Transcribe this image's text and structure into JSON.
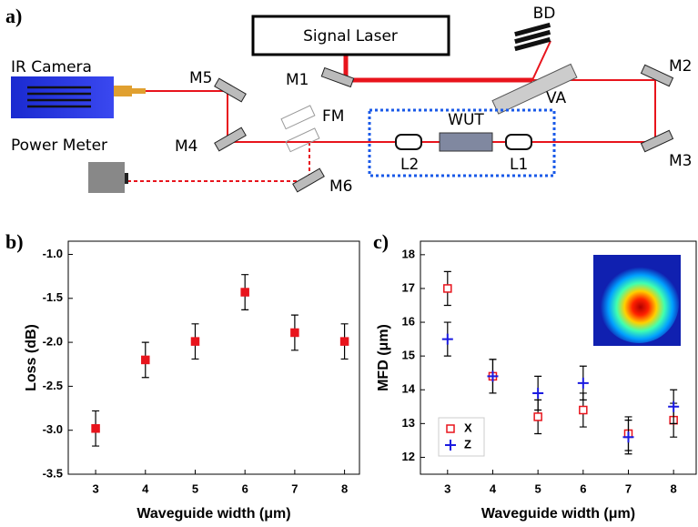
{
  "panels": [
    "a)",
    "b)",
    "c)"
  ],
  "diagram": {
    "signal_laser": "Signal Laser",
    "bd": "BD",
    "ir_camera": "IR Camera",
    "power_meter": "Power Meter",
    "m1": "M1",
    "m2": "M2",
    "m3": "M3",
    "m4": "M4",
    "m5": "M5",
    "m6": "M6",
    "va": "VA",
    "fm": "FM",
    "wut": "WUT",
    "l1": "L1",
    "l2": "L2"
  },
  "chart_data": [
    {
      "type": "scatter",
      "x_label": "Waveguide width (μm)",
      "y_label": "Loss (dB)",
      "x": [
        3,
        4,
        5,
        6,
        7,
        8
      ],
      "values": [
        -2.98,
        -2.2,
        -1.99,
        -1.43,
        -1.89,
        -1.99
      ],
      "errors": [
        0.2,
        0.2,
        0.2,
        0.2,
        0.2,
        0.2
      ],
      "color": "#e8141c",
      "marker": "square",
      "xlim": [
        2.45,
        8.3
      ],
      "xticks": [
        3,
        4,
        5,
        6,
        7,
        8
      ],
      "ylim": [
        -3.5,
        -0.85
      ],
      "yticks": [
        -3.5,
        {
          "value": -3,
          "label": "-3.0"
        },
        -2.5,
        {
          "value": -2,
          "label": "-2.0"
        },
        -1.5,
        {
          "value": -1,
          "label": "-1.0"
        }
      ]
    },
    {
      "type": "scatter",
      "x_label": "Waveguide width (μm)",
      "y_label": "MFD (μm)",
      "x": [
        3,
        4,
        5,
        6,
        7,
        8
      ],
      "series": [
        {
          "name": "X",
          "color": "#e8141c",
          "marker": "square",
          "values": [
            17.0,
            14.4,
            13.2,
            13.4,
            12.7,
            13.1
          ],
          "errors": [
            0.5,
            0.5,
            0.5,
            0.5,
            0.5,
            0.5
          ]
        },
        {
          "name": "Z",
          "color": "#1a1ae0",
          "marker": "plus",
          "values": [
            15.5,
            14.4,
            13.9,
            14.2,
            12.6,
            13.5
          ],
          "errors": [
            0.5,
            0.5,
            0.5,
            0.5,
            0.5,
            0.5
          ]
        }
      ],
      "xlim": [
        2.4,
        8.5
      ],
      "xticks": [
        3,
        4,
        5,
        6,
        7,
        8
      ],
      "ylim": [
        11.5,
        18.4
      ],
      "yticks": [
        12,
        13,
        14,
        15,
        16,
        17,
        18
      ],
      "legend": "lower-left"
    }
  ]
}
